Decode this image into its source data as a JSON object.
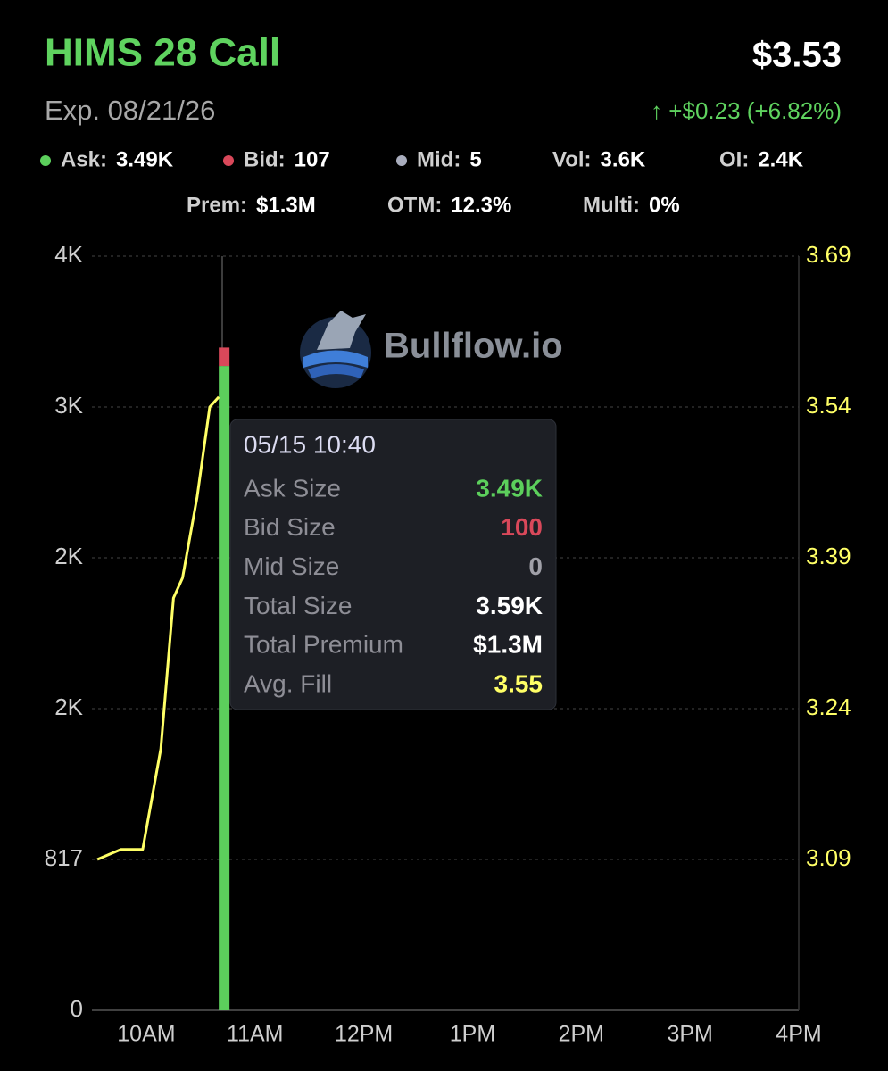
{
  "header": {
    "title": "HIMS 28 Call",
    "price": "$3.53",
    "expiry": "Exp. 08/21/26",
    "change": "↑ +$0.23 (+6.82%)"
  },
  "stats": [
    {
      "label": "Ask:",
      "value": "3.49K",
      "dot": "#5ccf5c"
    },
    {
      "label": "Bid:",
      "value": "107",
      "dot": "#d9485a"
    },
    {
      "label": "Mid:",
      "value": "5",
      "dot": "#a9adbd"
    },
    {
      "label": "Vol:",
      "value": "3.6K"
    },
    {
      "label": "OI:",
      "value": "2.4K"
    },
    {
      "label": "Prem:",
      "value": "$1.3M"
    },
    {
      "label": "OTM:",
      "value": "12.3%"
    },
    {
      "label": "Multi:",
      "value": "0%"
    }
  ],
  "watermark": "Bullflow.io",
  "tooltip": {
    "title": "05/15 10:40",
    "rows": [
      {
        "label": "Ask Size",
        "value": "3.49K",
        "color": "#5ccf5c"
      },
      {
        "label": "Bid Size",
        "value": "100",
        "color": "#d9485a"
      },
      {
        "label": "Mid Size",
        "value": "0",
        "color": "#a0a0a8"
      },
      {
        "label": "Total Size",
        "value": "3.59K",
        "color": "#ffffff"
      },
      {
        "label": "Total Premium",
        "value": "$1.3M",
        "color": "#ffffff"
      },
      {
        "label": "Avg. Fill",
        "value": "3.55",
        "color": "#ffff66"
      }
    ]
  },
  "chart_data": {
    "type": "bar",
    "xlim": [
      570,
      960
    ],
    "xticks": [
      {
        "value": 600,
        "label": "10AM"
      },
      {
        "value": 660,
        "label": "11AM"
      },
      {
        "value": 720,
        "label": "12PM"
      },
      {
        "value": 780,
        "label": "1PM"
      },
      {
        "value": 840,
        "label": "2PM"
      },
      {
        "value": 900,
        "label": "3PM"
      },
      {
        "value": 960,
        "label": "4PM"
      }
    ],
    "ylim": [
      0,
      4085
    ],
    "yticks": [
      0,
      817,
      {
        "value": 1634,
        "label": "2K"
      },
      {
        "value": 2451,
        "label": "2K"
      },
      {
        "value": 3268,
        "label": "3K"
      },
      {
        "value": 4085,
        "label": "4K"
      }
    ],
    "y2lim": [
      2.94,
      3.69
    ],
    "y2ticks": [
      3.09,
      3.24,
      3.39,
      3.54,
      3.69
    ],
    "grid": true,
    "series": [
      {
        "color": "#5ccf5c",
        "x": [
          640
        ],
        "values": [
          3490
        ]
      },
      {
        "color": "#d9485a",
        "x": [
          640
        ],
        "values": [
          100
        ]
      },
      {
        "type": "line",
        "axis": "y2",
        "color": "#ffff66",
        "x": [
          573,
          586,
          598,
          608,
          615,
          620,
          628,
          635,
          640
        ],
        "values": [
          3.09,
          3.1,
          3.1,
          3.2,
          3.35,
          3.37,
          3.45,
          3.54,
          3.55
        ]
      }
    ]
  }
}
